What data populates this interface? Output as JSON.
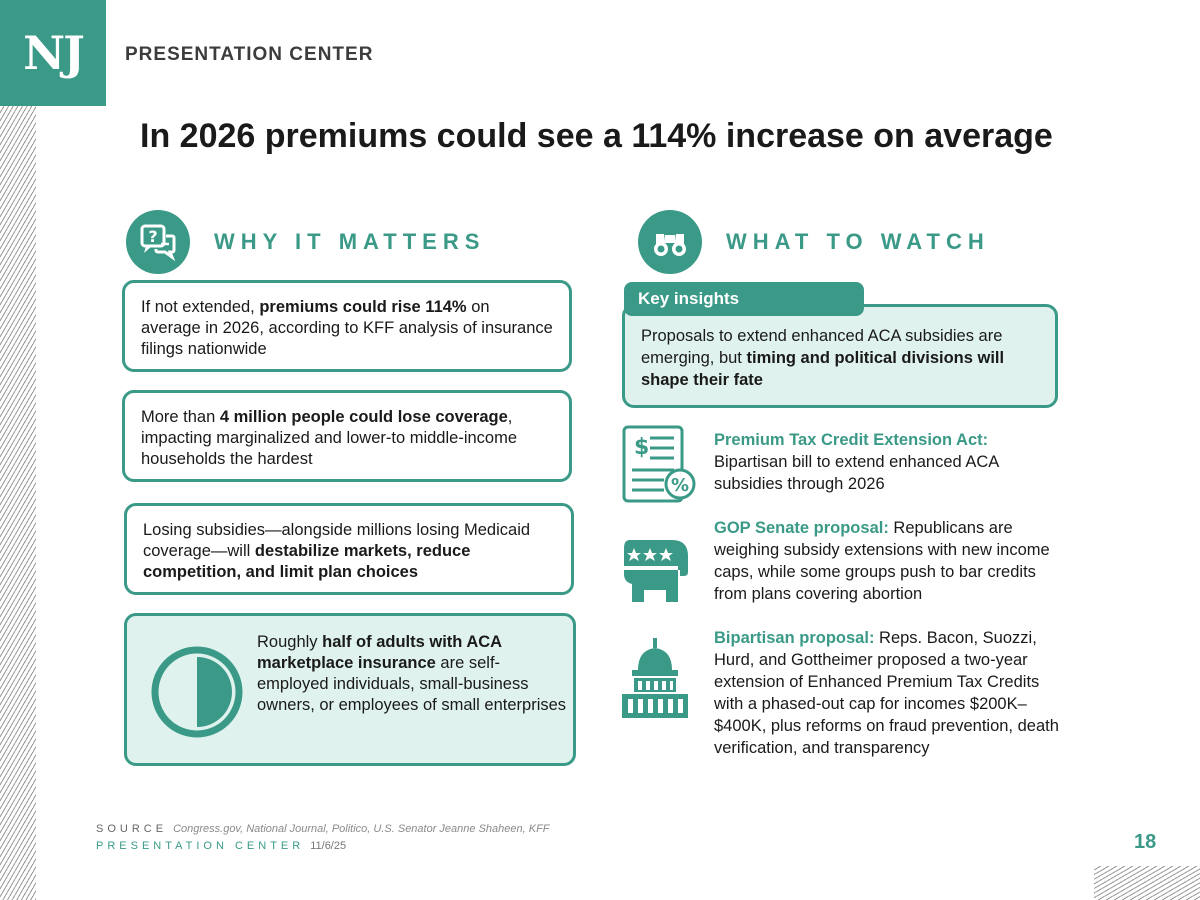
{
  "header": {
    "logo": "NJ",
    "label": "PRESENTATION CENTER"
  },
  "title": "In 2026 premiums could see a 114% increase on average",
  "why_section": {
    "heading": "WHY IT MATTERS",
    "icon": "question-chat-icon",
    "cards": [
      {
        "pre": "If not extended, ",
        "bold": "premiums could rise 114%",
        "post": " on average in 2026, according to KFF analysis of insurance filings nationwide"
      },
      {
        "pre": "More than ",
        "bold": "4 million people could lose coverage",
        "post": ", impacting marginalized and lower-to middle-income households the hardest"
      },
      {
        "pre": "Losing subsidies—alongside millions losing Medicaid coverage—will ",
        "bold": "destabilize markets, reduce competition, and limit plan choices",
        "post": ""
      },
      {
        "pre": "Roughly ",
        "bold": "half of adults with ACA marketplace insurance",
        "post": " are self-employed individuals, small-business owners, or employees of small enterprises",
        "icon": "half-circle-icon",
        "share": 0.5
      }
    ]
  },
  "watch_section": {
    "heading": "WHAT TO WATCH",
    "icon": "binoculars-icon",
    "insights": {
      "tab": "Key insights",
      "pre": "Proposals to extend enhanced ACA subsidies are emerging, but ",
      "bold": "timing and political divisions will shape their fate"
    },
    "items": [
      {
        "icon": "tax-document-icon",
        "head": "Premium Tax Credit Extension Act:",
        "body": " Bipartisan bill to extend enhanced ACA subsidies through 2026"
      },
      {
        "icon": "elephant-icon",
        "head": "GOP Senate proposal:",
        "body": " Republicans are weighing subsidy extensions with new income caps, while some groups push to bar credits from plans covering abortion"
      },
      {
        "icon": "capitol-icon",
        "head": "Bipartisan proposal:",
        "body": " Reps. Bacon, Suozzi, Hurd, and Gottheimer proposed a two-year extension of Enhanced Premium Tax Credits with a phased-out cap for incomes $200K–$400K, plus reforms on fraud prevention, death verification, and transparency"
      }
    ]
  },
  "footer": {
    "source_label": "SOURCE",
    "source_text": "Congress.gov, National Journal, Politico, U.S. Senator Jeanne Shaheen, KFF",
    "center_label": "PRESENTATION CENTER",
    "date": "11/6/25",
    "page_number": "18"
  },
  "colors": {
    "accent": "#3a9a87",
    "tint": "#dff2ee"
  }
}
